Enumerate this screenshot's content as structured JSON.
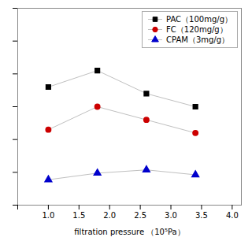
{
  "chart_data": {
    "type": "line",
    "xlabel": "filtration pressure （10⁵Pa）",
    "x": [
      1.0,
      1.8,
      2.6,
      3.4
    ],
    "series": [
      {
        "name": "PAC（100mg/g）",
        "color": "black",
        "marker": "square",
        "values": [
          0.72,
          0.82,
          0.68,
          0.6
        ]
      },
      {
        "name": "FC（120mg/g）",
        "color": "#cc0000",
        "marker": "circle",
        "values": [
          0.46,
          0.6,
          0.52,
          0.44
        ]
      },
      {
        "name": "CPAM（3mg/g）",
        "color": "#0000cc",
        "marker": "triangle",
        "values": [
          0.155,
          0.195,
          0.215,
          0.185
        ]
      }
    ],
    "xlim": [
      0.5,
      4.15
    ],
    "xticks": [
      {
        "value": 0.5,
        "label": ""
      },
      {
        "value": 1.0,
        "label": "1.0"
      },
      {
        "value": 1.5,
        "label": "1.5"
      },
      {
        "value": 2.0,
        "label": "2.0"
      },
      {
        "value": 2.5,
        "label": "2.5"
      },
      {
        "value": 3.0,
        "label": "3.0"
      },
      {
        "value": 3.5,
        "label": "3.5"
      },
      {
        "value": 4.0,
        "label": "4.0"
      }
    ],
    "ylim": [
      0,
      1.2
    ],
    "yticks": [
      0,
      0.2,
      0.4,
      0.6,
      0.8,
      1.0,
      1.2
    ],
    "tick_labels": "x",
    "grid": false,
    "legend": "upper right"
  }
}
